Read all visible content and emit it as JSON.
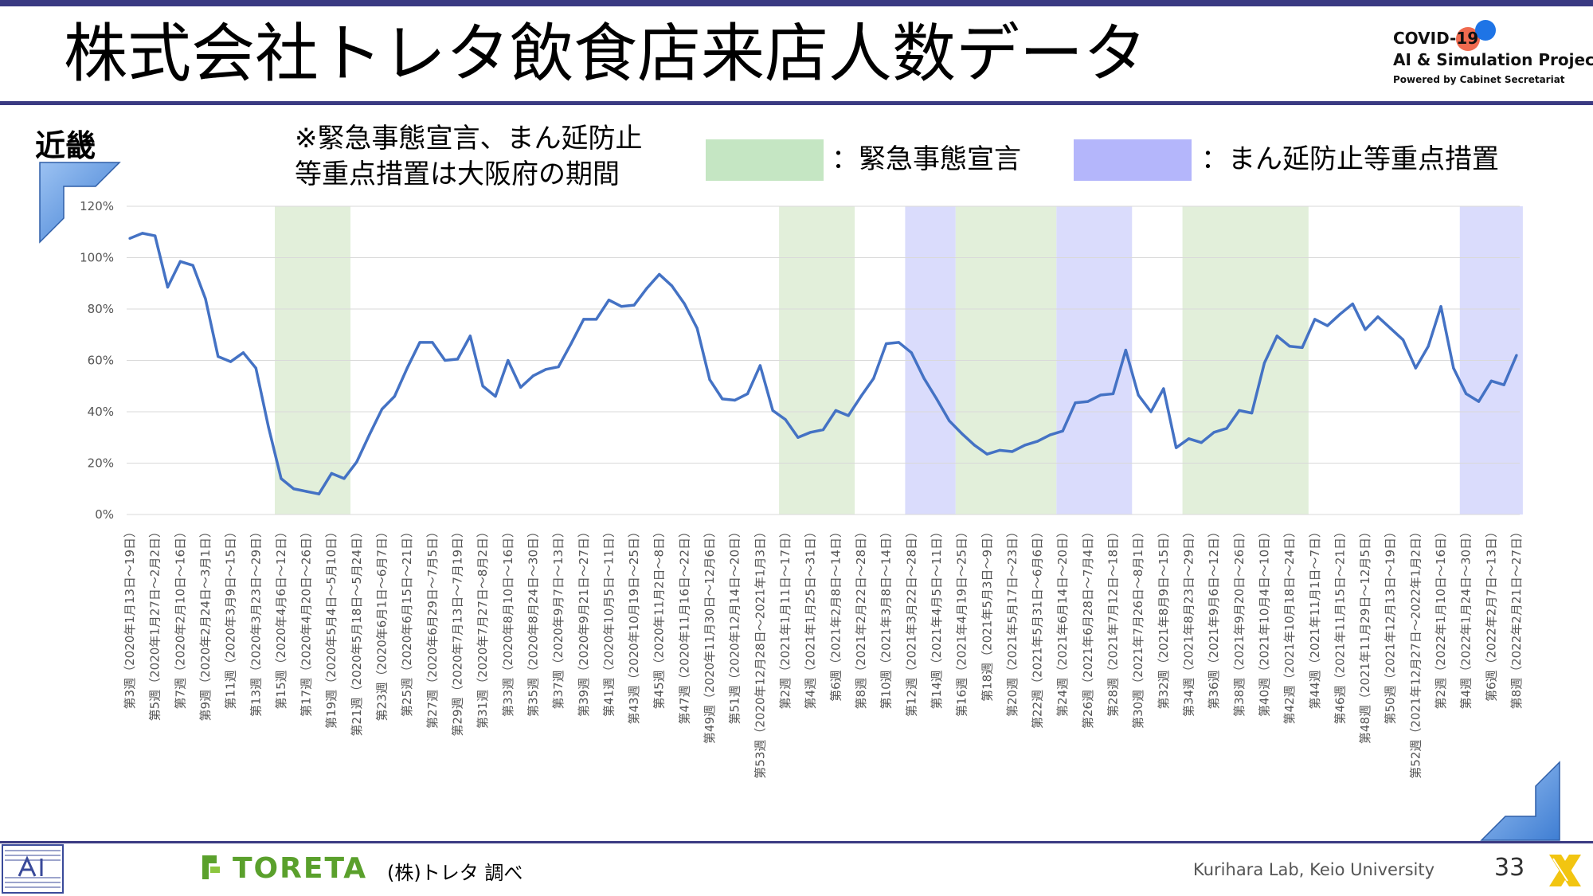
{
  "slide": {
    "title": "株式会社トレタ飲食店来店人数データ",
    "region": "近畿",
    "note_line1": "※緊急事態宣言、まん延防止",
    "note_line2": "等重点措置は大阪府の期間",
    "legend_emergency": "：緊急事態宣言",
    "legend_manbo": "：まん延防止等重点措置",
    "logo_line1": "COVID-19",
    "logo_line2": "AI & Simulation Project",
    "logo_line3": "Powered by Cabinet Secretariat",
    "toreta_logo": "TORETA",
    "source": "(株)トレタ 調べ",
    "lab": "Kurihara Lab, Keio University",
    "page_number": "33"
  },
  "colors": {
    "line": "#4472c4",
    "emergency": "#e2efda",
    "manbo": "#dadcfc",
    "grid": "#d9d9d9",
    "accent": "#3a3a82",
    "toreta": "#5aa02c"
  },
  "chart_data": {
    "type": "line",
    "ylim": [
      0,
      120
    ],
    "y_ticks": [
      "0%",
      "20%",
      "40%",
      "60%",
      "80%",
      "100%",
      "120%"
    ],
    "x_labels": [
      "第3週（2020年1月13日～19日）",
      "第5週（2020年1月27日～2月2日）",
      "第7週（2020年2月10日～16日）",
      "第9週（2020年2月24日～3月1日）",
      "第11週（2020年3月9日～15日）",
      "第13週（2020年3月23日～29日）",
      "第15週（2020年4月6日～12日）",
      "第17週（2020年4月20日～26日）",
      "第19週（2020年5月4日～5月10日）",
      "第21週（2020年5月18日～5月24日）",
      "第23週（2020年6月1日～6月7日）",
      "第25週（2020年6月15日～21日）",
      "第27週（2020年6月29日～7月5日）",
      "第29週（2020年7月13日～7月19日）",
      "第31週（2020年7月27日～8月2日）",
      "第33週（2020年8月10日～16日）",
      "第35週（2020年8月24日～30日）",
      "第37週（2020年9月7日～13日）",
      "第39週（2020年9月21日～27日）",
      "第41週（2020年10月5日～11日）",
      "第43週（2020年10月19日～25日）",
      "第45週（2020年11月2日～8日）",
      "第47週（2020年11月16日～22日）",
      "第49週（2020年11月30日～12月6日）",
      "第51週（2020年12月14日～20日）",
      "第53週（2020年12月28日～2021年1月3日）",
      "第2週（2021年1月11日～17日）",
      "第4週（2021年1月25日～31日）",
      "第6週（2021年2月8日～14日）",
      "第8週（2021年2月22日～28日）",
      "第10週（2021年3月8日～14日）",
      "第12週（2021年3月22日～28日）",
      "第14週（2021年4月5日～11日）",
      "第16週（2021年4月19日～25日）",
      "第18週（2021年5月3日～9日）",
      "第20週（2021年5月17日～23日）",
      "第22週（2021年5月31日～6月6日）",
      "第24週（2021年6月14日～20日）",
      "第26週（2021年6月28日～7月4日）",
      "第28週（2021年7月12日～18日）",
      "第30週（2021年7月26日～8月1日）",
      "第32週（2021年8月9日～15日）",
      "第34週（2021年8月23日～29日）",
      "第36週（2021年9月6日～12日）",
      "第38週（2021年9月20日～26日）",
      "第40週（2021年10月4日～10日）",
      "第42週（2021年10月18日～24日）",
      "第44週（2021年11月1日～7日）",
      "第46週（2021年11月15日～21日）",
      "第48週（2021年11月29日～12月5日）",
      "第50週（2021年12月13日～19日）",
      "第52週（2021年12月27日～2022年1月2日）",
      "第2週（2022年1月10日～16日）",
      "第4週（2022年1月24日～30日）",
      "第6週（2022年2月7日～13日）",
      "第8週（2022年2月21日～27日）"
    ],
    "values": [
      107.5,
      109.5,
      108.5,
      88.5,
      98.5,
      97,
      84,
      61.5,
      59.5,
      63,
      57,
      34,
      14,
      10,
      9,
      8,
      16,
      14,
      20.5,
      31,
      41,
      46,
      57,
      67,
      67,
      60,
      60.5,
      69.5,
      50,
      46,
      60,
      49.5,
      54,
      56.5,
      57.5,
      66.5,
      76,
      76,
      83.5,
      81,
      81.5,
      88,
      93.5,
      89,
      82,
      72.5,
      52.5,
      45,
      44.5,
      47,
      58,
      40.5,
      37,
      30,
      32,
      33,
      40.5,
      38.5,
      46,
      53,
      66.5,
      67,
      63,
      53,
      45,
      36.5,
      31.5,
      27,
      23.5,
      25,
      24.5,
      27,
      28.5,
      31,
      32.5,
      43.5,
      44,
      46.5,
      47,
      64,
      46.5,
      40,
      49,
      26,
      29.5,
      28,
      32,
      33.5,
      40.5,
      39.5,
      59,
      69.5,
      65.5,
      65,
      76,
      73.5,
      78,
      82,
      72,
      77,
      72.5,
      68,
      57,
      65.5,
      81,
      57,
      47,
      44,
      52,
      50.5,
      62
    ],
    "emergency_periods": [
      [
        12,
        18
      ],
      [
        52,
        58
      ],
      [
        66,
        74
      ],
      [
        84,
        94
      ]
    ],
    "manbo_periods": [
      [
        62,
        66
      ],
      [
        74,
        80
      ],
      [
        106,
        111
      ]
    ]
  }
}
